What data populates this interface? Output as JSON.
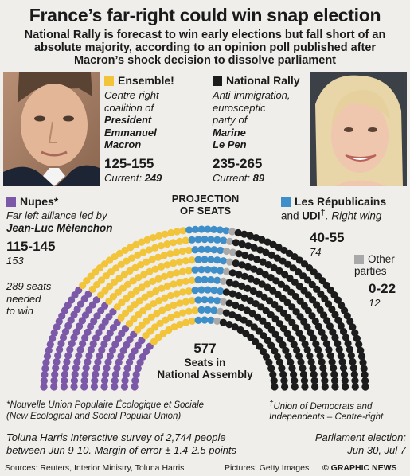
{
  "header": {
    "title": "France’s far-right could win snap election",
    "subtitle": "National Rally is forecast to win early elections but fall short of an absolute majority, according to an opinion poll published after Macron’s shock decision to dissolve parliament"
  },
  "colors": {
    "ensemble": "#f2c43a",
    "national_rally": "#1c1c1c",
    "nupes": "#7b59a8",
    "republicains": "#3d8ec9",
    "other": "#a9a9a9",
    "background": "#efeeea"
  },
  "parties": {
    "ensemble": {
      "name": "Ensemble!",
      "desc1": "Centre-right",
      "desc2": "coalition of",
      "leader1": "President",
      "leader2": "Emmanuel",
      "leader3": "Macron",
      "range": "125-155",
      "current_label": "Current:",
      "current": "249"
    },
    "national_rally": {
      "name": "National Rally",
      "desc1": "Anti-immigration,",
      "desc2": "eurosceptic",
      "desc3": "party of",
      "leader1": "Marine",
      "leader2": "Le Pen",
      "range": "235-265",
      "current_label": "Current:",
      "current": "89"
    },
    "nupes": {
      "name": "Nupes*",
      "desc": "Far left alliance led by",
      "leader": "Jean-Luc Mélenchon",
      "range": "115-145",
      "current": "153"
    },
    "republicains": {
      "name": "Les Républicains",
      "name2_prefix": "and",
      "name2": "UDI",
      "dagger": "†",
      "desc": ". Right wing",
      "range": "40-55",
      "current": "74"
    },
    "other": {
      "name": "Other",
      "name2": "parties",
      "range": "0-22",
      "current": "12"
    }
  },
  "hemicycle": {
    "projection_label1": "PROJECTION",
    "projection_label2": "OF SEATS",
    "total": "577",
    "total_label1": "Seats in",
    "total_label2": "National Assembly",
    "majority1": "289 seats",
    "majority2": "needed",
    "majority3": "to win"
  },
  "chart_data": {
    "type": "hemicycle",
    "total_seats": 577,
    "majority": 289,
    "series": [
      {
        "name": "Nupes",
        "seats": 130
      },
      {
        "name": "Ensemble!",
        "seats": 140
      },
      {
        "name": "Les Républicains and UDI",
        "seats": 47
      },
      {
        "name": "Other parties",
        "seats": 10
      },
      {
        "name": "National Rally",
        "seats": 250
      }
    ]
  },
  "notes": {
    "nupes_note1": "*Nouvelle Union Populaire Écologique et Sociale",
    "nupes_note2": "(New Ecological and Social Popular Union)",
    "udi_note_mark": "†",
    "udi_note1": "Union of Democrats and",
    "udi_note2": "Independents – Centre-right",
    "survey1": "Toluna Harris Interactive survey of 2,744 people",
    "survey2": "between Jun 9-10. Margin of error ± 1.4-2.5 points",
    "election1": "Parliament election:",
    "election2": "Jun 30, Jul 7"
  },
  "footer": {
    "sources": "Sources: Reuters, Interior Ministry, Toluna Harris",
    "pictures": "Pictures: Getty Images",
    "credit": "© GRAPHIC NEWS"
  }
}
